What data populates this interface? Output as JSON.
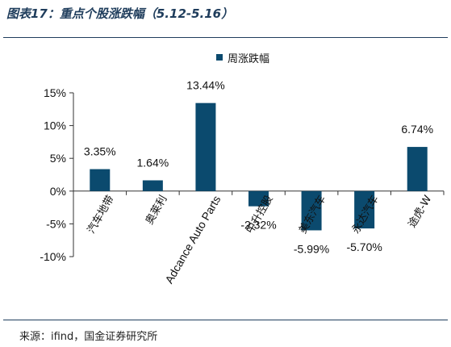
{
  "figure": {
    "title": "图表17：重点个股涨跌幅（5.12-5.16）",
    "source": "来源：ifind，国金证券研究所"
  },
  "colors": {
    "bar": "#0b4a6e",
    "axis": "#333333",
    "text": "#111111",
    "rule": "#1f3d5c"
  },
  "chart_data": {
    "type": "bar",
    "categories": [
      "汽车地带",
      "奥莱利",
      "Adcance Auto Parts",
      "中升控股",
      "美东汽车",
      "永达汽车",
      "途虎-W"
    ],
    "series": [
      {
        "name": "周涨跌幅",
        "values": [
          3.35,
          1.64,
          13.44,
          -2.32,
          -5.99,
          -5.7,
          6.74
        ]
      }
    ],
    "data_labels": [
      "3.35%",
      "1.64%",
      "13.44%",
      "-2.32%",
      "-5.99%",
      "-5.70%",
      "6.74%"
    ],
    "y_ticks": [
      15,
      10,
      5,
      0,
      -5,
      -10
    ],
    "y_tick_labels": [
      "15%",
      "10%",
      "5%",
      "0%",
      "-5%",
      "-10%"
    ],
    "ylim": [
      -10,
      15
    ],
    "grid": false,
    "legend_position": "top-center",
    "xlabel": "",
    "ylabel": ""
  }
}
